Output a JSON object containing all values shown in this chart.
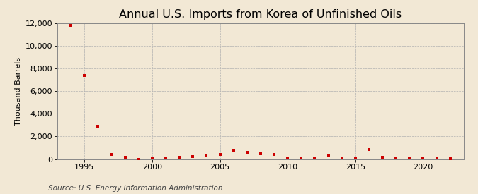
{
  "title": "Annual U.S. Imports from Korea of Unfinished Oils",
  "ylabel": "Thousand Barrels",
  "source": "Source: U.S. Energy Information Administration",
  "background_color": "#f2e8d5",
  "marker_color": "#cc0000",
  "years": [
    1994,
    1995,
    1996,
    1997,
    1998,
    1999,
    2000,
    2001,
    2002,
    2003,
    2004,
    2005,
    2006,
    2007,
    2008,
    2009,
    2010,
    2011,
    2012,
    2013,
    2014,
    2015,
    2016,
    2017,
    2018,
    2019,
    2020,
    2021,
    2022
  ],
  "values": [
    11800,
    7400,
    2900,
    400,
    180,
    0,
    100,
    120,
    180,
    200,
    280,
    400,
    750,
    580,
    450,
    380,
    100,
    90,
    80,
    310,
    80,
    80,
    850,
    130,
    90,
    100,
    90,
    80,
    50
  ],
  "xlim": [
    1993,
    2023
  ],
  "ylim": [
    0,
    12000
  ],
  "yticks": [
    0,
    2000,
    4000,
    6000,
    8000,
    10000,
    12000
  ],
  "xticks": [
    1995,
    2000,
    2005,
    2010,
    2015,
    2020
  ],
  "title_fontsize": 11.5,
  "label_fontsize": 8,
  "tick_fontsize": 8,
  "source_fontsize": 7.5
}
